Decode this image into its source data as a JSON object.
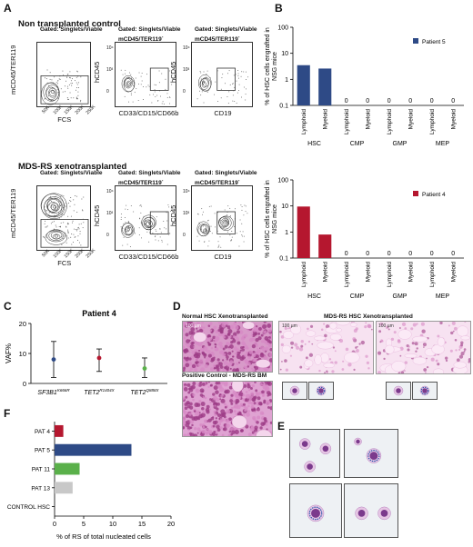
{
  "panels": {
    "A": "A",
    "B": "B",
    "C": "C",
    "D": "D",
    "E": "E",
    "F": "F"
  },
  "flow": {
    "top_title": "Non transplanted control",
    "bottom_title": "MDS-RS xenotransplanted",
    "gate1": "Gated: Singlets/Viable",
    "gate2_line1": "Gated: Singlets/Viable",
    "gate2_line2": "mCD45/TER119",
    "gate2_sup": "-",
    "y1": "mCD45/TER119",
    "x1": "FCS",
    "y2": "hCD45",
    "x2": "CD33/CD15/CD66b",
    "x3": "CD19",
    "ticks_x1": [
      "50K",
      "100K",
      "150K",
      "200K",
      "250K"
    ],
    "ticks_y": [
      "10⁴",
      "10³",
      "0"
    ]
  },
  "chart_data": [
    {
      "type": "bar",
      "panel": "B-top",
      "ylabel": "% of HSC cells engrafted in NSG mice",
      "yscale": "log",
      "ylim": [
        0.1,
        100
      ],
      "yticks": [
        "100",
        "10",
        "1",
        "0.1"
      ],
      "groups": [
        "HSC",
        "CMP",
        "GMP",
        "MEP"
      ],
      "categories": [
        "Lymphoid",
        "Myeloid",
        "Lymphoid",
        "Myeloid",
        "Lymphoid",
        "Myeloid",
        "Lymphoid",
        "Myeloid"
      ],
      "series": [
        {
          "name": "Patient 5",
          "values": [
            3.5,
            2.6,
            0,
            0,
            0,
            0,
            0,
            0
          ]
        }
      ],
      "zero_label": "0",
      "color": "#2e4a86"
    },
    {
      "type": "bar",
      "panel": "B-bottom",
      "ylabel": "% of HSC cells engrafted in NSG mice",
      "yscale": "log",
      "ylim": [
        0.1,
        100
      ],
      "yticks": [
        "100",
        "10",
        "1",
        "0.1"
      ],
      "groups": [
        "HSC",
        "CMP",
        "GMP",
        "MEP"
      ],
      "categories": [
        "Lymphoid",
        "Myeloid",
        "Lymphoid",
        "Myeloid",
        "Lymphoid",
        "Myeloid",
        "Lymphoid",
        "Myeloid"
      ],
      "series": [
        {
          "name": "Patient 4",
          "values": [
            9.5,
            0.8,
            0,
            0,
            0,
            0,
            0,
            0
          ]
        }
      ],
      "zero_label": "0",
      "color": "#b5172f"
    },
    {
      "type": "scatter",
      "panel": "C",
      "title": "Patient 4",
      "ylabel": "VAF%",
      "ylim": [
        0,
        20
      ],
      "yticks": [
        "0",
        "10",
        "20"
      ],
      "categories": [
        "SF3B1",
        "TET2",
        "TET2"
      ],
      "category_sup": [
        "K666R",
        "R1404X",
        "Q888X"
      ],
      "means": [
        8,
        8.5,
        5
      ],
      "lower": [
        2,
        4,
        2
      ],
      "upper": [
        14,
        11.5,
        8.5
      ],
      "colors": [
        "#2e4a86",
        "#b5172f",
        "#5ab04a"
      ]
    },
    {
      "type": "bar",
      "panel": "F",
      "orientation": "horizontal",
      "xlabel": "% of RS of total nucleated cells",
      "xlim": [
        0,
        20
      ],
      "xticks": [
        "0",
        "5",
        "10",
        "15",
        "20"
      ],
      "categories": [
        "PAT 4",
        "PAT 5",
        "PAT 11",
        "PAT 13",
        "CONTROL HSC"
      ],
      "values": [
        1.5,
        13.2,
        4.3,
        3.1,
        0
      ],
      "colors": [
        "#b5172f",
        "#2e4a86",
        "#5ab04a",
        "#c8c8c8",
        "#c8c8c8"
      ]
    }
  ],
  "histo": {
    "normal": "Normal HSC Xenotransplanted",
    "positive": "Positive Control - MDS-RS BM",
    "mdsrs": "MDS-RS HSC Xenotransplanted",
    "scale": "100 µm"
  }
}
